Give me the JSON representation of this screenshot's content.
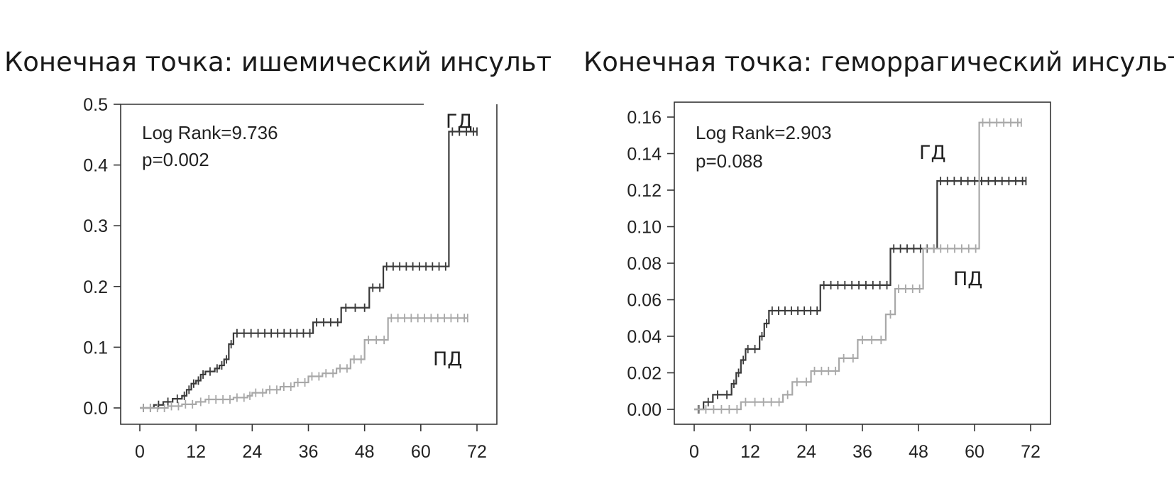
{
  "panels": [
    {
      "title": "Конечная точка: ишемический инсульт"
    },
    {
      "title": "Конечная точка: геморрагический инсульт"
    }
  ],
  "chart_data": [
    {
      "type": "line",
      "subtype": "kaplan-meier-cumulative-incidence",
      "title": "Конечная точка: ишемический инсульт",
      "xlabel": "",
      "ylabel": "",
      "xlim": [
        0,
        72
      ],
      "ylim": [
        0,
        0.5
      ],
      "x_ticks": [
        0,
        12,
        24,
        36,
        48,
        60,
        72
      ],
      "y_ticks": [
        0.0,
        0.1,
        0.2,
        0.3,
        0.4,
        0.5
      ],
      "y_tick_labels": [
        "0.0",
        "0.1",
        "0.2",
        "0.3",
        "0.4",
        "0.5"
      ],
      "grid": false,
      "annotations": [
        "Log Rank=9.736",
        "p=0.002"
      ],
      "series": [
        {
          "name": "ГД",
          "color": "#3a3a3a",
          "x": [
            0,
            3,
            5,
            7,
            9,
            10,
            11,
            12,
            13,
            14,
            16,
            17,
            18,
            19,
            20,
            26,
            37,
            43,
            47,
            49,
            52,
            66,
            72
          ],
          "y": [
            0,
            0.005,
            0.01,
            0.015,
            0.02,
            0.03,
            0.04,
            0.045,
            0.055,
            0.06,
            0.065,
            0.07,
            0.08,
            0.105,
            0.123,
            0.123,
            0.141,
            0.165,
            0.165,
            0.198,
            0.233,
            0.455,
            0.455
          ]
        },
        {
          "name": "ПД",
          "color": "#a8a8a8",
          "x": [
            0,
            6,
            9,
            12,
            14,
            20,
            23,
            24,
            27,
            30,
            33,
            36,
            39,
            42,
            45,
            48,
            53,
            70
          ],
          "y": [
            0,
            0.003,
            0.006,
            0.01,
            0.014,
            0.017,
            0.02,
            0.025,
            0.03,
            0.035,
            0.042,
            0.052,
            0.057,
            0.065,
            0.08,
            0.112,
            0.148,
            0.148
          ]
        }
      ]
    },
    {
      "type": "line",
      "subtype": "kaplan-meier-cumulative-incidence",
      "title": "Конечная точка: геморрагический инсульт",
      "xlabel": "",
      "ylabel": "",
      "xlim": [
        0,
        72
      ],
      "ylim": [
        0,
        0.16
      ],
      "x_ticks": [
        0,
        12,
        24,
        36,
        48,
        60,
        72
      ],
      "y_ticks": [
        0.0,
        0.02,
        0.04,
        0.06,
        0.08,
        0.1,
        0.12,
        0.14,
        0.16
      ],
      "y_tick_labels": [
        "0.00",
        "0.02",
        "0.04",
        "0.06",
        "0.08",
        "0.10",
        "0.12",
        "0.14",
        "0.16"
      ],
      "grid": false,
      "annotations": [
        "Log Rank=2.903",
        "p=0.088"
      ],
      "series": [
        {
          "name": "ГД",
          "color": "#3a3a3a",
          "x": [
            0,
            2,
            4,
            8,
            9,
            10,
            11,
            12,
            14,
            15,
            16,
            27,
            42,
            52,
            71
          ],
          "y": [
            0,
            0.004,
            0.008,
            0.014,
            0.02,
            0.027,
            0.033,
            0.033,
            0.04,
            0.047,
            0.054,
            0.068,
            0.088,
            0.125,
            0.125
          ]
        },
        {
          "name": "ПД",
          "color": "#a8a8a8",
          "x": [
            0,
            5,
            10,
            14,
            19,
            21,
            25,
            31,
            35,
            39,
            41,
            43,
            49,
            61,
            70
          ],
          "y": [
            0,
            0.0,
            0.004,
            0.004,
            0.008,
            0.015,
            0.021,
            0.028,
            0.038,
            0.038,
            0.052,
            0.066,
            0.088,
            0.157,
            0.157
          ]
        }
      ]
    }
  ]
}
